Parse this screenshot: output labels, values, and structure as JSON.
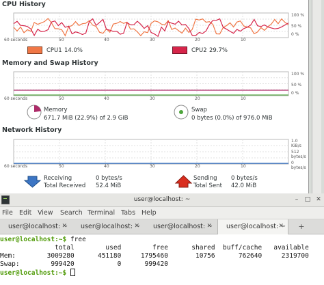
{
  "system_monitor": {
    "cpu": {
      "title": "CPU History",
      "y_ticks": [
        "100 %",
        "50 %",
        "0 %"
      ],
      "x_ticks": [
        "60 seconds",
        "50",
        "40",
        "30",
        "20",
        "10"
      ],
      "cpu1_label": "CPU1",
      "cpu1_value": "14.0%",
      "cpu1_color": "#f07746",
      "cpu2_label": "CPU2",
      "cpu2_value": "29.7%",
      "cpu2_color": "#d6254a"
    },
    "memory": {
      "title": "Memory and Swap History",
      "y_ticks": [
        "100 %",
        "50 %",
        "0 %"
      ],
      "x_ticks": [
        "60 seconds",
        "50",
        "40",
        "30",
        "20",
        "10"
      ],
      "memory_label": "Memory",
      "memory_value": "671.7 MiB (22.9%) of 2.9 GiB",
      "memory_percent": 22.9,
      "memory_color": "#ad2b69",
      "swap_label": "Swap",
      "swap_value": "0 bytes (0.0%) of 976.0 MiB",
      "swap_percent": 0,
      "swap_color": "#4ea53c"
    },
    "network": {
      "title": "Network History",
      "y_ticks": [
        "1.0 KiB/s",
        "512 bytes/s",
        "0 bytes/s"
      ],
      "x_ticks": [
        "60 seconds",
        "50",
        "40",
        "30",
        "20",
        "10"
      ],
      "receiving_label": "Receiving",
      "receiving_value": "0 bytes/s",
      "total_received_label": "Total Received",
      "total_received_value": "52.4 MiB",
      "sending_label": "Sending",
      "sending_value": "0 bytes/s",
      "total_sent_label": "Total Sent",
      "total_sent_value": "42.0 MiB",
      "receiving_color": "#3c75c4",
      "sending_color": "#d92d1e"
    }
  },
  "terminal": {
    "title": "user@localhost: ~",
    "menu": [
      "File",
      "Edit",
      "View",
      "Search",
      "Terminal",
      "Tabs",
      "Help"
    ],
    "tabs": [
      "user@localhost: ~",
      "user@localhost: ~",
      "user@localhost: ~",
      "user@localhost: ~"
    ],
    "active_tab": 3,
    "lines": [
      {
        "prompt": "user@localhost:~$",
        "text": " free"
      },
      {
        "prompt": "",
        "text": "              total        used        free      shared  buff/cache   available"
      },
      {
        "prompt": "",
        "text": "Mem:        3009280      451180     1795460       10756      762640     2319700"
      },
      {
        "prompt": "",
        "text": "Swap:        999420           0      999420"
      },
      {
        "prompt": "user@localhost:~$",
        "text": " "
      }
    ]
  }
}
